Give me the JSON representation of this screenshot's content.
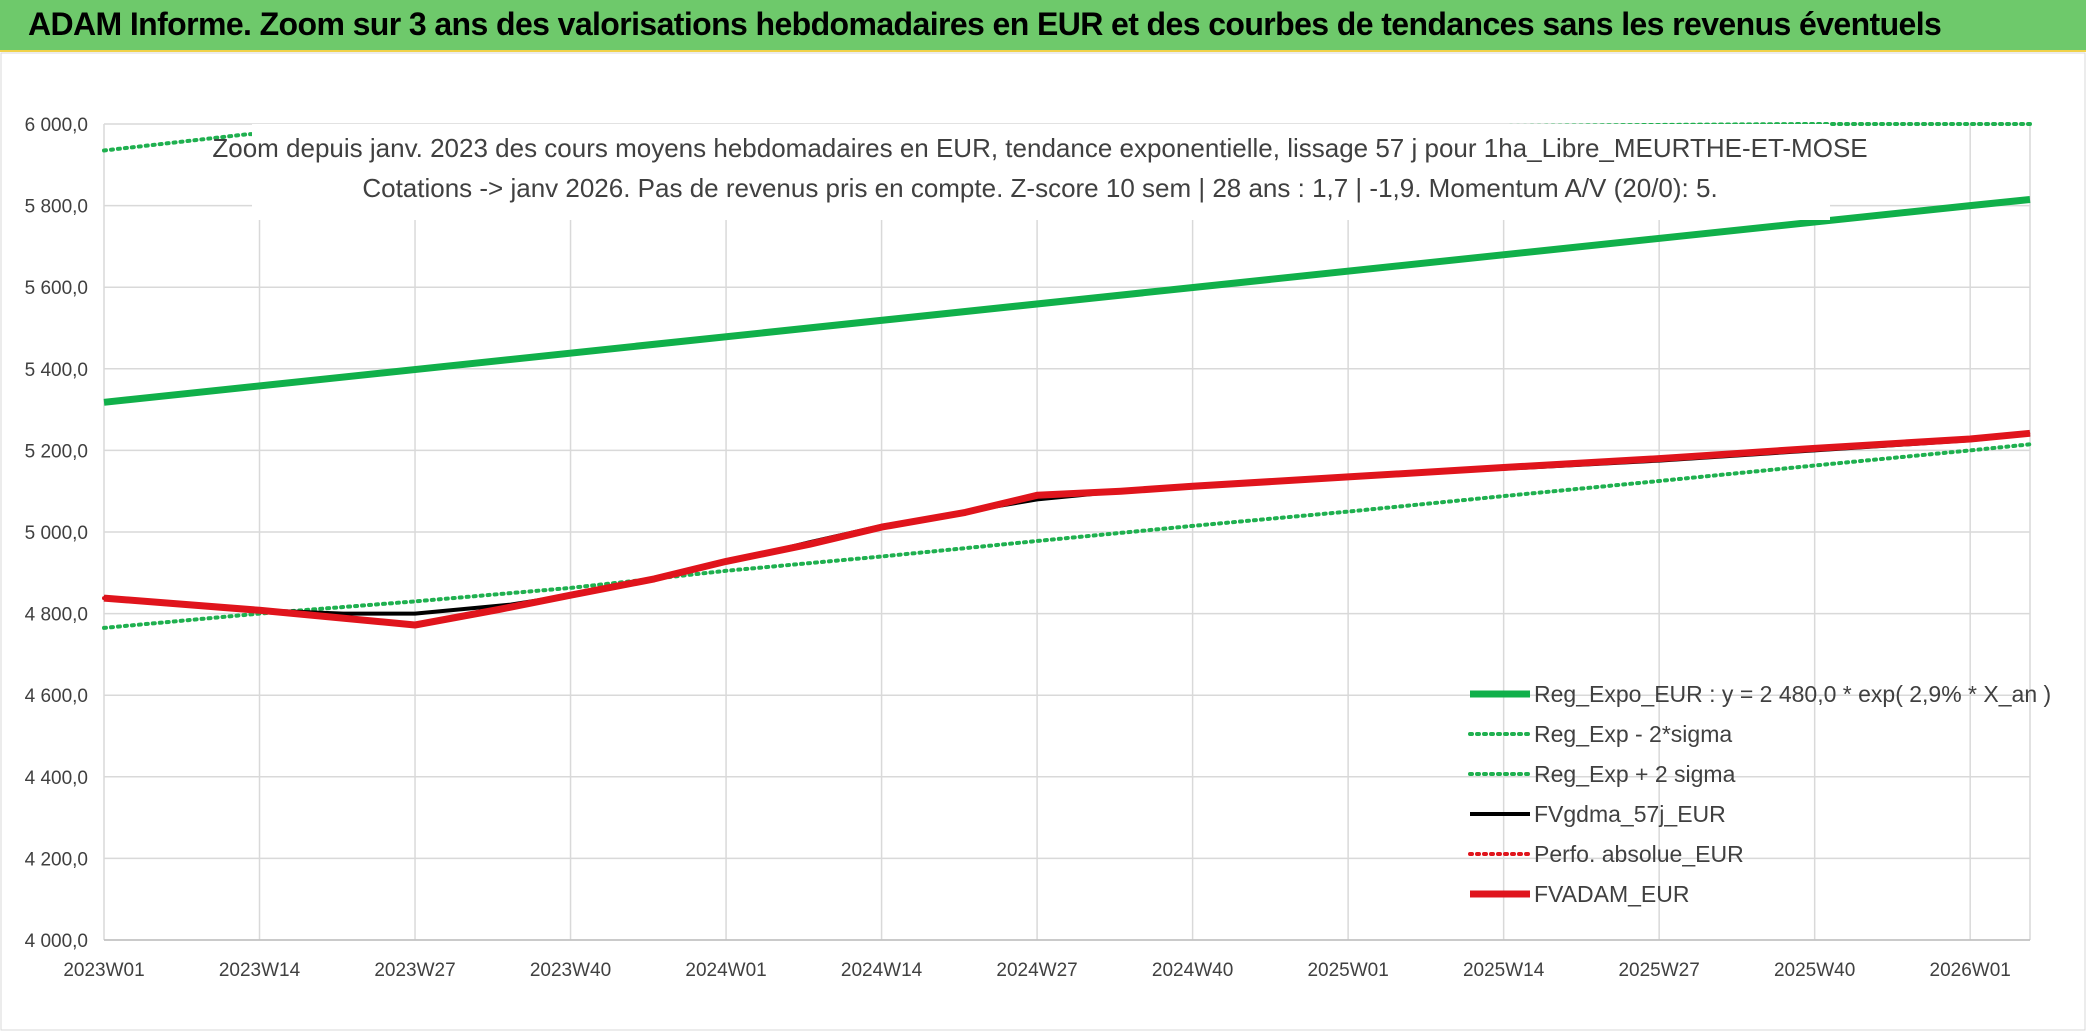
{
  "header": {
    "title": "ADAM Informe. Zoom sur 3 ans des valorisations hebdomadaires en EUR et des courbes de tendances sans les revenus éventuels"
  },
  "colors": {
    "header_bg": "#6ec96b",
    "reg_expo": "#10b04a",
    "reg_sigma": "#1fb04f",
    "fvgdma": "#000000",
    "perfo": "#e0141c",
    "fvadam": "#e0141c",
    "grid": "#d9d9d9"
  },
  "chart_data": {
    "type": "line",
    "title_line1": "Zoom depuis janv. 2023 des cours moyens hebdomadaires en EUR, tendance exponentielle, lissage 57 j pour 1ha_Libre_MEURTHE-ET-MOSE",
    "title_line2": "Cotations -> janv 2026. Pas de revenus pris en compte. Z-score 10 sem | 28 ans : 1,7 | -1,9. Momentum A/V (20/0): 5.",
    "xlabel": "",
    "ylabel": "",
    "x_ticks": [
      "2023W01",
      "2023W14",
      "2023W27",
      "2023W40",
      "2024W01",
      "2024W14",
      "2024W27",
      "2024W40",
      "2025W01",
      "2025W14",
      "2025W27",
      "2025W40",
      "2026W01"
    ],
    "y_ticks": [
      "4 000,0",
      "4 200,0",
      "4 400,0",
      "4 600,0",
      "4 800,0",
      "5 000,0",
      "5 200,0",
      "5 400,0",
      "5 600,0",
      "5 800,0",
      "6 000,0"
    ],
    "ylim": [
      4000,
      6000
    ],
    "x_range_weeks": [
      0,
      161
    ],
    "grid": true,
    "legend_position": "bottom-right",
    "series": [
      {
        "name": "Reg_Expo_EUR : y = 2 480,0 * exp( 2,9% *  X_an )",
        "style": "solid-thick",
        "color_key": "reg_expo",
        "points": [
          [
            0,
            5318
          ],
          [
            156,
            5800
          ],
          [
            161,
            5815
          ]
        ]
      },
      {
        "name": "Reg_Exp - 2*sigma",
        "style": "dotted",
        "color_key": "reg_sigma",
        "points": [
          [
            0,
            4765
          ],
          [
            13,
            4800
          ],
          [
            26,
            4830
          ],
          [
            39,
            4863
          ],
          [
            52,
            4905
          ],
          [
            65,
            4940
          ],
          [
            78,
            4978
          ],
          [
            91,
            5015
          ],
          [
            104,
            5050
          ],
          [
            117,
            5088
          ],
          [
            130,
            5125
          ],
          [
            143,
            5163
          ],
          [
            156,
            5200
          ],
          [
            161,
            5215
          ]
        ]
      },
      {
        "name": "Reg_Exp + 2 sigma",
        "style": "dotted",
        "color_key": "reg_sigma",
        "points": [
          [
            0,
            5935
          ],
          [
            12,
            5975
          ],
          [
            142,
            6000
          ],
          [
            161,
            6000
          ]
        ]
      },
      {
        "name": "FVgdma_57j_EUR",
        "style": "solid",
        "color_key": "fvgdma",
        "points": [
          [
            0,
            4840
          ],
          [
            13,
            4808
          ],
          [
            20,
            4800
          ],
          [
            26,
            4800
          ],
          [
            34,
            4822
          ],
          [
            39,
            4845
          ],
          [
            46,
            4885
          ],
          [
            52,
            4925
          ],
          [
            59,
            4975
          ],
          [
            65,
            5015
          ],
          [
            72,
            5050
          ],
          [
            78,
            5080
          ],
          [
            85,
            5100
          ],
          [
            91,
            5110
          ],
          [
            104,
            5135
          ],
          [
            117,
            5155
          ],
          [
            130,
            5175
          ],
          [
            143,
            5200
          ],
          [
            156,
            5225
          ],
          [
            161,
            5240
          ]
        ]
      },
      {
        "name": "Perfo. absolue_EUR",
        "style": "dotted",
        "color_key": "perfo",
        "points": [
          [
            0,
            4838
          ],
          [
            13,
            4808
          ],
          [
            26,
            4772
          ],
          [
            33,
            4810
          ],
          [
            39,
            4845
          ],
          [
            46,
            4885
          ],
          [
            52,
            4928
          ],
          [
            59,
            4970
          ],
          [
            65,
            5012
          ],
          [
            72,
            5048
          ],
          [
            78,
            5090
          ],
          [
            85,
            5100
          ],
          [
            91,
            5112
          ],
          [
            104,
            5135
          ],
          [
            117,
            5158
          ],
          [
            130,
            5180
          ],
          [
            143,
            5205
          ],
          [
            156,
            5228
          ],
          [
            161,
            5242
          ]
        ]
      },
      {
        "name": "FVADAM_EUR",
        "style": "solid-thick",
        "color_key": "fvadam",
        "points": [
          [
            0,
            4838
          ],
          [
            13,
            4808
          ],
          [
            26,
            4772
          ],
          [
            33,
            4810
          ],
          [
            39,
            4845
          ],
          [
            46,
            4885
          ],
          [
            52,
            4928
          ],
          [
            59,
            4970
          ],
          [
            65,
            5012
          ],
          [
            72,
            5048
          ],
          [
            78,
            5090
          ],
          [
            85,
            5100
          ],
          [
            91,
            5112
          ],
          [
            104,
            5135
          ],
          [
            117,
            5158
          ],
          [
            130,
            5180
          ],
          [
            143,
            5205
          ],
          [
            156,
            5228
          ],
          [
            161,
            5242
          ]
        ]
      }
    ]
  }
}
